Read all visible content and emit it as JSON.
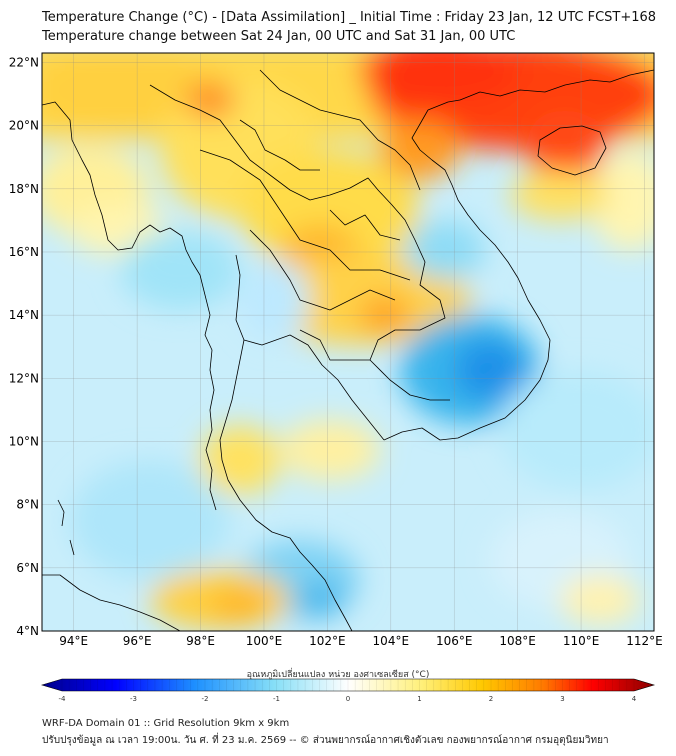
{
  "header": {
    "title_line1": "Temperature Change (°C) - [Data Assimilation] _ Initial Time : Friday 23 Jan, 12 UTC FCST+168",
    "title_line2": "Temperature change between Sat 24 Jan, 00 UTC and Sat 31 Jan, 00 UTC"
  },
  "map": {
    "lat_ticks": [
      22,
      20,
      18,
      16,
      14,
      12,
      10,
      8,
      6,
      4
    ],
    "lon_ticks": [
      94,
      96,
      98,
      100,
      102,
      104,
      106,
      108,
      110,
      112
    ],
    "lat_labels": [
      "22°N",
      "20°N",
      "18°N",
      "16°N",
      "14°N",
      "12°N",
      "10°N",
      "8°N",
      "6°N",
      "4°N"
    ],
    "lon_labels": [
      "94°E",
      "96°E",
      "98°E",
      "100°E",
      "102°E",
      "104°E",
      "106°E",
      "108°E",
      "110°E",
      "112°E"
    ],
    "lat_range": [
      4,
      22.3
    ],
    "lon_range": [
      93,
      112.3
    ]
  },
  "colorbar": {
    "label": "อุณหภูมิเปลี่ยนแปลง หน่วย องศาเซลเซียส (°C)",
    "ticks": [
      "-4",
      "-3",
      "-2",
      "-1",
      "0",
      "1",
      "2",
      "3",
      "4"
    ],
    "range": [
      -4,
      4
    ]
  },
  "footer": {
    "line1": "WRF-DA Domain 01 :: Grid Resolution 9km x 9km",
    "line2": "ปรับปรุงข้อมูล ณ เวลา 19:00น. วัน ศ. ที่ 23 ม.ค. 2569 -- © ส่วนพยากรณ์อากาศเชิงตัวเลข กองพยากรณ์อากาศ กรมอุตุนิยมวิทยา"
  },
  "colors": {
    "cold_dark": "#00008b",
    "cold": "#1e90ff",
    "cool": "#7fdcf5",
    "neutral": "#ffffff",
    "warm": "#ffd23c",
    "hot": "#ff7800",
    "hot_dark": "#8b0000"
  }
}
